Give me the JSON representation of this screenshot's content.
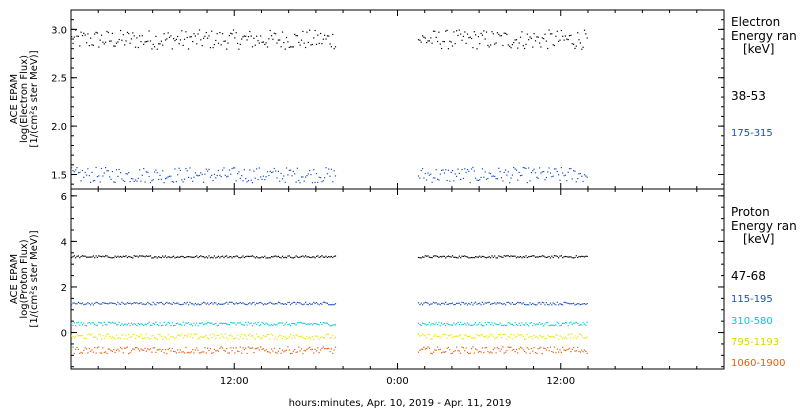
{
  "colors": {
    "black": "#000000",
    "blue1": "#1050c8",
    "blue2": "#1a4fc0",
    "cyan": "#00c8d8",
    "yellow": "#e8e800",
    "orange": "#e06010"
  },
  "xaxis": {
    "label": "hours:minutes, Apr. 10, 2019 - Apr. 11, 2019",
    "ticks": [
      "12:00",
      "0:00",
      "12:00"
    ]
  },
  "chart_data": [
    {
      "type": "scatter",
      "panel": "electron",
      "ylabel": [
        "ACE EPAM",
        "log(Electron Flux)",
        "[1/(cm²s ster MeV)]"
      ],
      "ylim": [
        1.35,
        3.2
      ],
      "yticks": [
        "1.5",
        "2.0",
        "2.5",
        "3.0"
      ],
      "xlim_hours": [
        0,
        48
      ],
      "data_gaps_hours": [
        [
          19.5,
          25.5
        ]
      ],
      "data_range_hours": [
        0,
        38
      ],
      "legend_title": [
        "Electron",
        "Energy ran",
        "[keV]"
      ],
      "series": [
        {
          "name": "38-53",
          "color": "#000000",
          "mean": 2.9,
          "spread": 0.1
        },
        {
          "name": "175-315",
          "color": "#1050c8",
          "mean": 1.5,
          "spread": 0.08
        }
      ]
    },
    {
      "type": "scatter",
      "panel": "proton",
      "ylabel": [
        "ACE EPAM",
        "log(Proton Flux)",
        "[1/(cm²s ster MeV)]"
      ],
      "ylim": [
        -1.6,
        6.3
      ],
      "yticks": [
        "0",
        "2",
        "4",
        "6"
      ],
      "xlim_hours": [
        0,
        48
      ],
      "data_gaps_hours": [
        [
          19.5,
          25.5
        ]
      ],
      "data_range_hours": [
        0,
        38
      ],
      "legend_title": [
        "Proton",
        "Energy ran",
        "[keV]"
      ],
      "series": [
        {
          "name": "47-68",
          "color": "#000000",
          "mean": 3.35,
          "spread": 0.05
        },
        {
          "name": "115-195",
          "color": "#1a4fc0",
          "mean": 1.3,
          "spread": 0.06
        },
        {
          "name": "310-580",
          "color": "#00c8d8",
          "mean": 0.4,
          "spread": 0.08
        },
        {
          "name": "795-1193",
          "color": "#e8e800",
          "mean": -0.15,
          "spread": 0.12
        },
        {
          "name": "1060-1900",
          "color": "#e06010",
          "mean": -0.75,
          "spread": 0.15
        }
      ]
    }
  ]
}
